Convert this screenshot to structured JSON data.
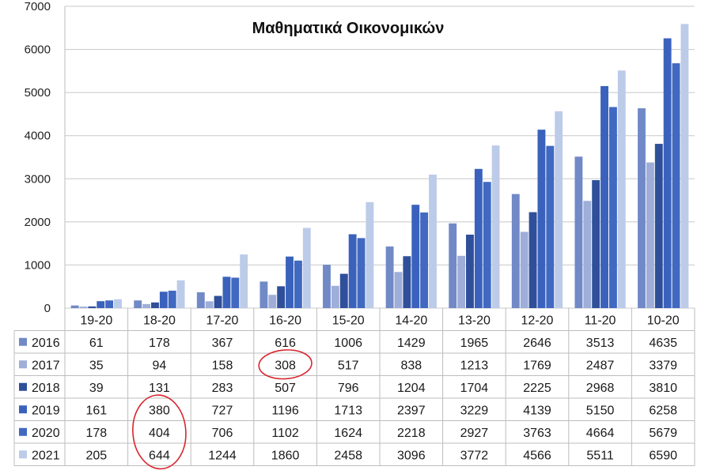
{
  "chart_data": {
    "type": "bar",
    "title": "Μαθηματικά Οικονομικών",
    "categories": [
      "19-20",
      "18-20",
      "17-20",
      "16-20",
      "15-20",
      "14-20",
      "13-20",
      "12-20",
      "11-20",
      "10-20"
    ],
    "series": [
      {
        "name": "2016",
        "color": "#7189c6",
        "values": [
          61,
          178,
          367,
          616,
          1006,
          1429,
          1965,
          2646,
          3513,
          4635
        ]
      },
      {
        "name": "2017",
        "color": "#9eaed9",
        "values": [
          35,
          94,
          158,
          308,
          517,
          838,
          1213,
          1769,
          2487,
          3379
        ]
      },
      {
        "name": "2018",
        "color": "#2f4f9a",
        "values": [
          39,
          131,
          283,
          507,
          796,
          1204,
          1704,
          2225,
          2968,
          3810
        ]
      },
      {
        "name": "2019",
        "color": "#3a62bd",
        "values": [
          161,
          380,
          727,
          1196,
          1713,
          2397,
          3229,
          4139,
          5150,
          6258
        ]
      },
      {
        "name": "2020",
        "color": "#4169c1",
        "values": [
          178,
          404,
          706,
          1102,
          1624,
          2218,
          2927,
          3763,
          4664,
          5679
        ]
      },
      {
        "name": "2021",
        "color": "#bccbe8",
        "values": [
          205,
          644,
          1244,
          1860,
          2458,
          3096,
          3772,
          4566,
          5511,
          6590
        ]
      }
    ],
    "yticks": [
      0,
      1000,
      2000,
      3000,
      4000,
      5000,
      6000,
      7000
    ],
    "ylim": [
      0,
      7000
    ],
    "grid": true,
    "legend": "data table below chart",
    "annotations": [
      {
        "type": "red-circle",
        "series": "2017",
        "category": "16-20"
      },
      {
        "type": "red-circle",
        "series": [
          "2019",
          "2020",
          "2021"
        ],
        "category": "18-20"
      }
    ]
  }
}
